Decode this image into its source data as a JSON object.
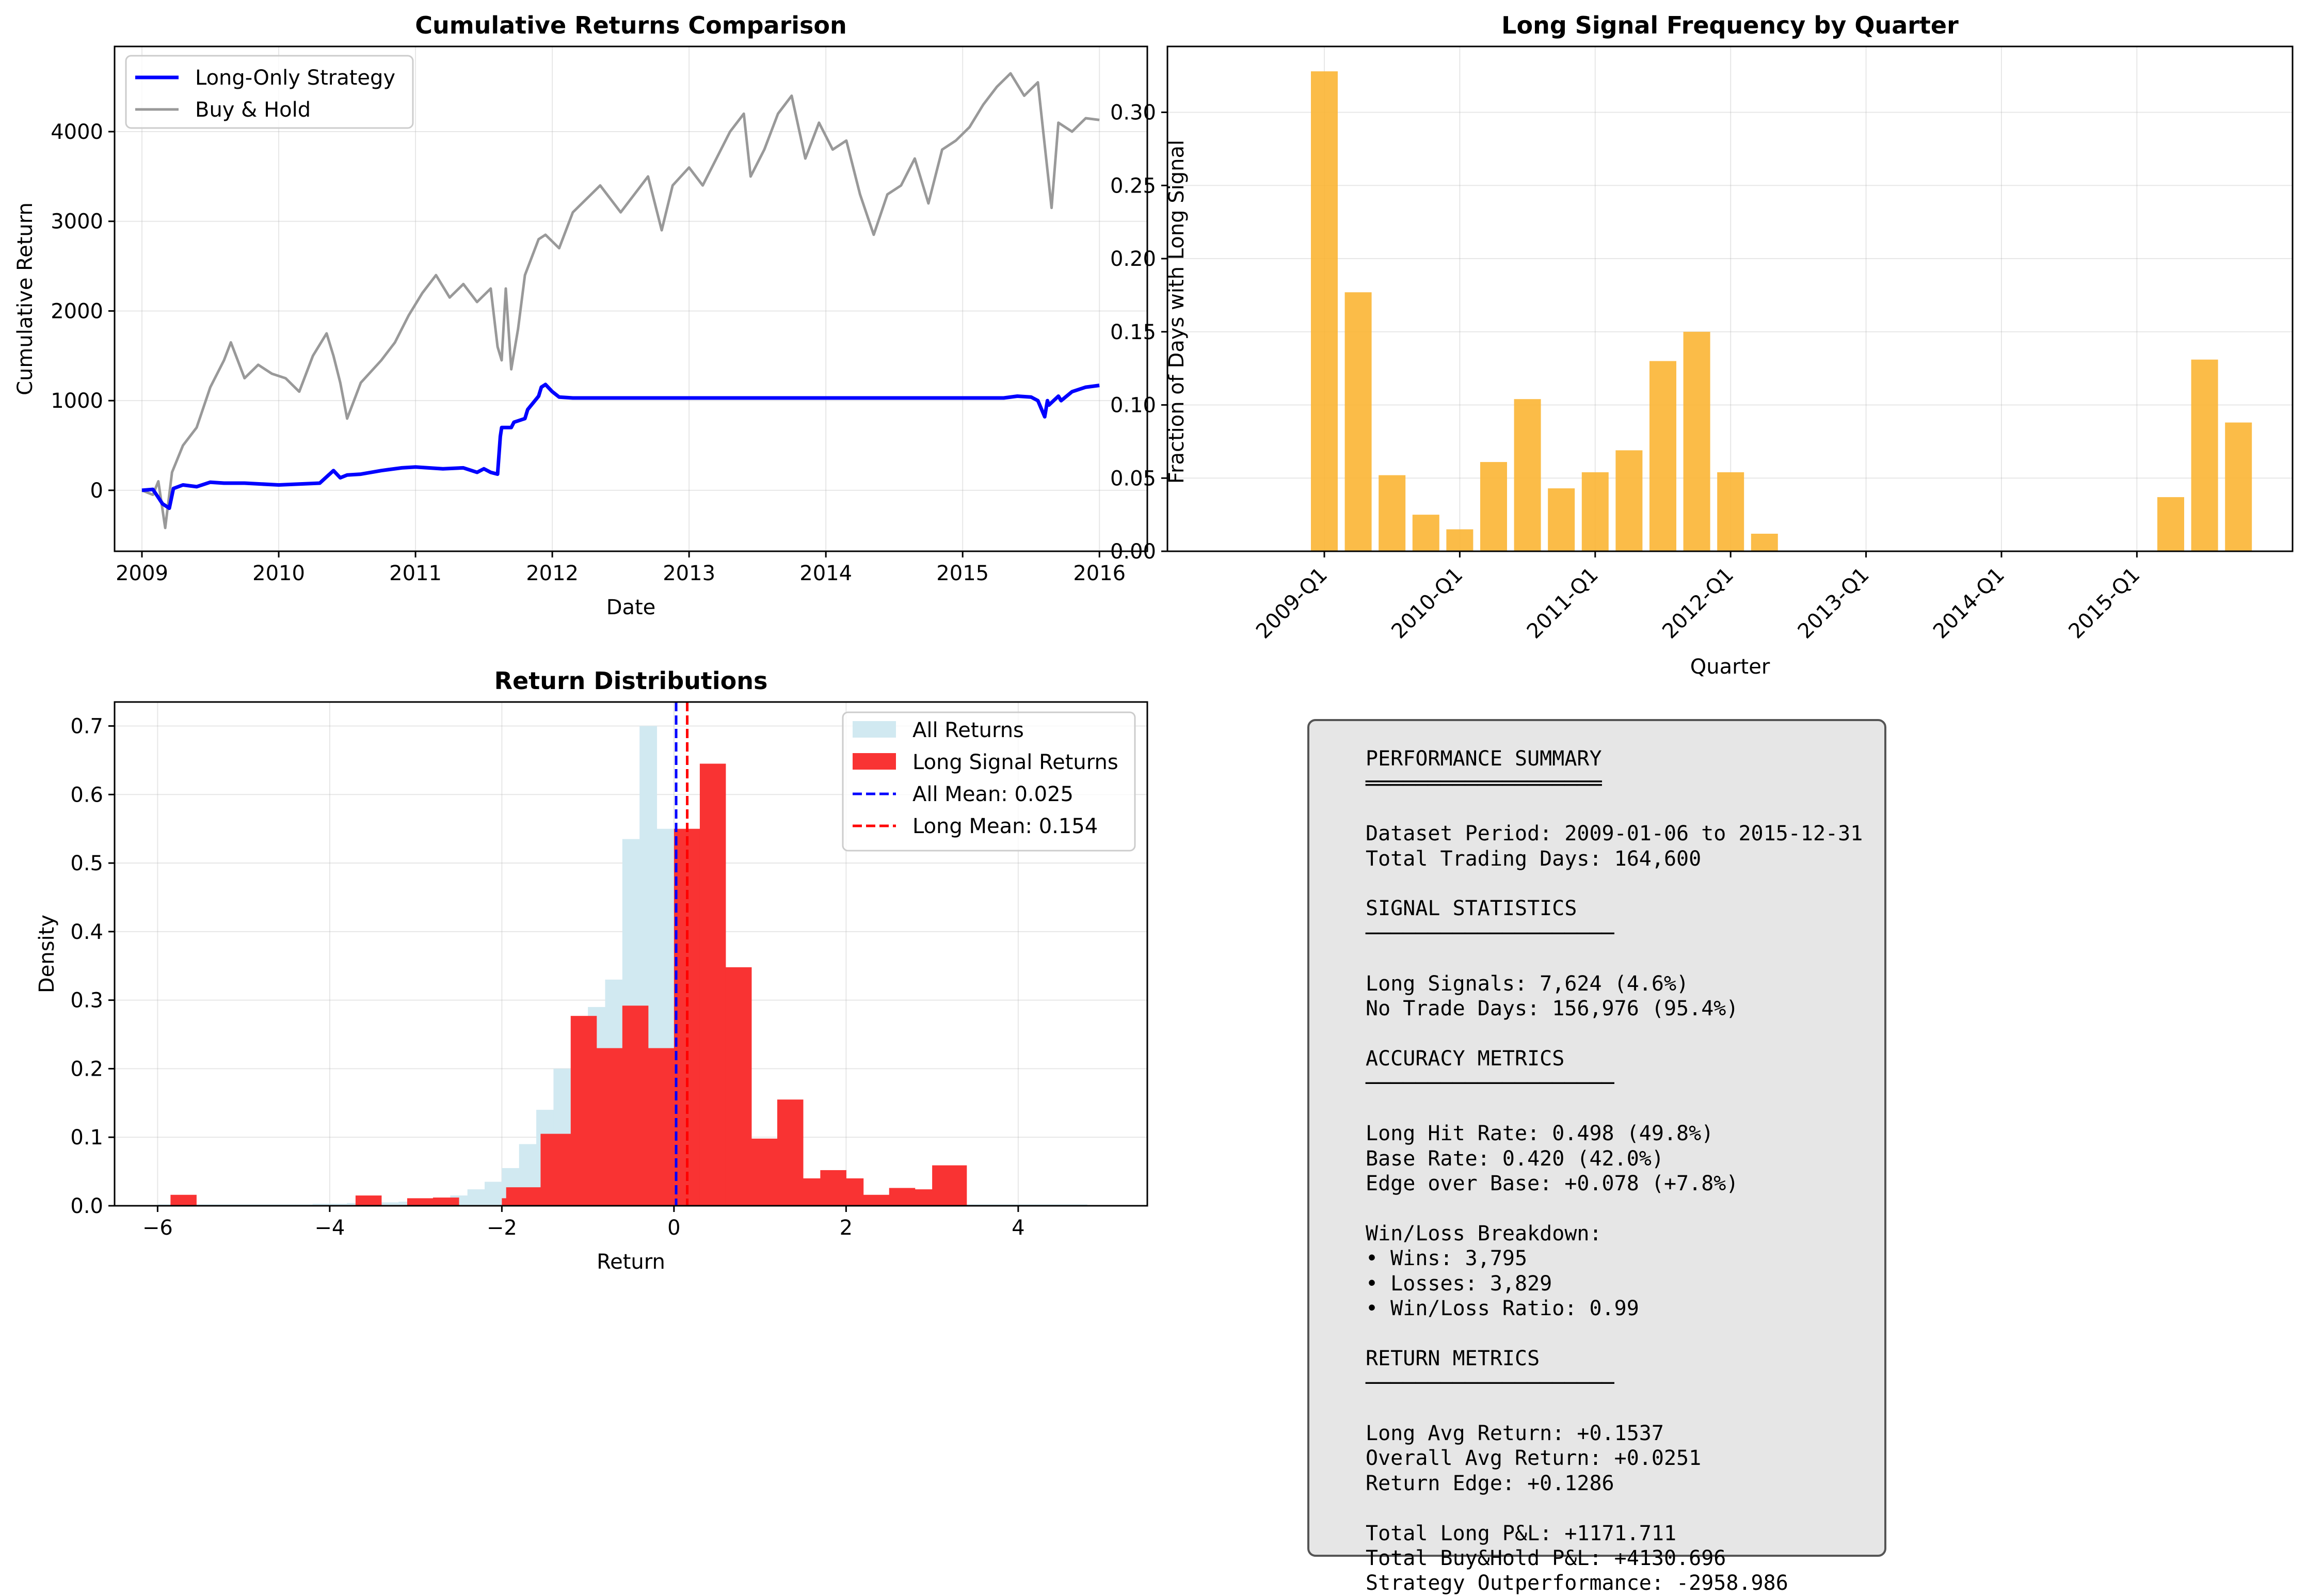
{
  "figure": {
    "charts": [
      {
        "id": "cumulative",
        "type": "line",
        "title": "Cumulative Returns Comparison",
        "xlabel": "Date",
        "ylabel": "Cumulative Return",
        "xlim": [
          2008.8,
          2016.35
        ],
        "ylim": [
          -680,
          4950
        ],
        "xticks": [
          2009,
          2010,
          2011,
          2012,
          2013,
          2014,
          2015,
          2016
        ],
        "yticks": [
          0,
          1000,
          2000,
          3000,
          4000
        ],
        "grid": true,
        "legend_position": "upper left",
        "series": [
          {
            "name": "Long-Only Strategy",
            "color": "#0000ff",
            "x": [
              2009.0,
              2009.08,
              2009.12,
              2009.15,
              2009.2,
              2009.23,
              2009.3,
              2009.4,
              2009.5,
              2009.6,
              2009.75,
              2010.0,
              2010.3,
              2010.4,
              2010.45,
              2010.5,
              2010.6,
              2010.75,
              2010.8,
              2010.9,
              2011.0,
              2011.2,
              2011.35,
              2011.45,
              2011.5,
              2011.55,
              2011.6,
              2011.62,
              2011.63,
              2011.7,
              2011.72,
              2011.8,
              2011.82,
              2011.9,
              2011.92,
              2011.95,
              2012.0,
              2012.05,
              2012.15,
              2012.3,
              2013.0,
              2014.0,
              2015.0,
              2015.3,
              2015.4,
              2015.5,
              2015.55,
              2015.6,
              2015.62,
              2015.63,
              2015.7,
              2015.72,
              2015.8,
              2015.9,
              2016.0
            ],
            "y": [
              0,
              10,
              -80,
              -150,
              -200,
              20,
              60,
              40,
              90,
              80,
              80,
              60,
              80,
              220,
              140,
              170,
              180,
              220,
              230,
              250,
              260,
              240,
              250,
              200,
              240,
              200,
              180,
              600,
              700,
              700,
              760,
              800,
              900,
              1050,
              1150,
              1180,
              1100,
              1040,
              1030,
              1030,
              1030,
              1030,
              1030,
              1030,
              1050,
              1040,
              1000,
              820,
              1000,
              950,
              1050,
              1000,
              1100,
              1150,
              1170
            ]
          },
          {
            "name": "Buy & Hold",
            "color": "#999999",
            "x": [
              2009.0,
              2009.08,
              2009.12,
              2009.17,
              2009.22,
              2009.3,
              2009.4,
              2009.5,
              2009.6,
              2009.65,
              2009.75,
              2009.85,
              2009.95,
              2010.05,
              2010.15,
              2010.25,
              2010.35,
              2010.4,
              2010.45,
              2010.5,
              2010.6,
              2010.75,
              2010.85,
              2010.95,
              2011.05,
              2011.15,
              2011.25,
              2011.35,
              2011.45,
              2011.55,
              2011.6,
              2011.63,
              2011.66,
              2011.7,
              2011.75,
              2011.8,
              2011.85,
              2011.9,
              2011.95,
              2012.05,
              2012.15,
              2012.25,
              2012.35,
              2012.45,
              2012.5,
              2012.6,
              2012.7,
              2012.8,
              2012.88,
              2013.0,
              2013.1,
              2013.2,
              2013.3,
              2013.4,
              2013.45,
              2013.55,
              2013.65,
              2013.75,
              2013.85,
              2013.95,
              2014.05,
              2014.15,
              2014.25,
              2014.35,
              2014.45,
              2014.55,
              2014.65,
              2014.75,
              2014.85,
              2014.95,
              2015.05,
              2015.15,
              2015.25,
              2015.35,
              2015.45,
              2015.55,
              2015.6,
              2015.65,
              2015.7,
              2015.8,
              2015.9,
              2016.0
            ],
            "y": [
              0,
              -50,
              100,
              -420,
              200,
              500,
              700,
              1150,
              1450,
              1650,
              1250,
              1400,
              1300,
              1250,
              1100,
              1500,
              1750,
              1500,
              1200,
              800,
              1200,
              1450,
              1650,
              1950,
              2200,
              2400,
              2150,
              2300,
              2100,
              2250,
              1600,
              1450,
              2250,
              1350,
              1800,
              2400,
              2600,
              2800,
              2850,
              2700,
              3100,
              3250,
              3400,
              3200,
              3100,
              3300,
              3500,
              2900,
              3400,
              3600,
              3400,
              3700,
              4000,
              4200,
              3500,
              3800,
              4200,
              4400,
              3700,
              4100,
              3800,
              3900,
              3300,
              2850,
              3300,
              3400,
              3700,
              3200,
              3800,
              3900,
              4050,
              4300,
              4500,
              4650,
              4400,
              4550,
              3850,
              3150,
              4100,
              4000,
              4150,
              4130
            ]
          }
        ]
      },
      {
        "id": "quarterly",
        "type": "bar",
        "title": "Long Signal Frequency by Quarter",
        "xlabel": "Quarter",
        "ylabel": "Fraction of Days with Long Signal",
        "ylim": [
          0,
          0.345
        ],
        "yticks": [
          "0.00",
          "0.05",
          "0.10",
          "0.15",
          "0.20",
          "0.25",
          "0.30"
        ],
        "xtick_labels": [
          "2009-Q1",
          "2010-Q1",
          "2011-Q1",
          "2012-Q1",
          "2013-Q1",
          "2014-Q1",
          "2015-Q1"
        ],
        "xtick_index": [
          0,
          4,
          8,
          12,
          16,
          20,
          24
        ],
        "bar_color": "#fbb534",
        "n_quarters": 28,
        "values": [
          0.328,
          0.177,
          0.052,
          0.025,
          0.015,
          0.061,
          0.104,
          0.043,
          0.054,
          0.069,
          0.13,
          0.15,
          0.054,
          0.012,
          0.0,
          0.0,
          0.0,
          0.0,
          0.0,
          0.0,
          0.0,
          0.0,
          0.0,
          0.0,
          0.0,
          0.037,
          0.131,
          0.088
        ],
        "grid": true
      },
      {
        "id": "distribution",
        "type": "histogram",
        "title": "Return Distributions",
        "xlabel": "Return",
        "ylabel": "Density",
        "xlim": [
          -6.5,
          5.5
        ],
        "ylim": [
          0,
          0.735
        ],
        "xticks": [
          -6,
          -4,
          -2,
          0,
          2,
          4
        ],
        "xtick_labels": [
          "−6",
          "−4",
          "−2",
          "0",
          "2",
          "4"
        ],
        "yticks": [
          "0.0",
          "0.1",
          "0.2",
          "0.3",
          "0.4",
          "0.5",
          "0.6",
          "0.7"
        ],
        "grid": true,
        "legend_position": "upper right",
        "all_returns": {
          "name": "All Returns",
          "color": "#d1e9f1",
          "bin_start": -6.0,
          "bin_width": 0.2,
          "values": [
            0.002,
            0.002,
            0.002,
            0.002,
            0.002,
            0.002,
            0.002,
            0.002,
            0.002,
            0.003,
            0.003,
            0.004,
            0.004,
            0.005,
            0.006,
            0.008,
            0.012,
            0.015,
            0.024,
            0.035,
            0.055,
            0.09,
            0.14,
            0.2,
            0.27,
            0.29,
            0.33,
            0.535,
            0.7,
            0.55,
            0.29,
            0.19,
            0.115,
            0.075,
            0.04,
            0.025,
            0.015,
            0.01,
            0.007,
            0.005,
            0.004,
            0.003,
            0.002,
            0.002,
            0.002,
            0.002,
            0.002,
            0.002,
            0.002,
            0.002,
            0.002,
            0.002,
            0.002,
            0.002
          ]
        },
        "long_returns": {
          "name": "Long Signal Returns",
          "color": "#f93333",
          "bins": [
            [
              -5.85,
              -5.55,
              0.016
            ],
            [
              -3.7,
              -3.4,
              0.015
            ],
            [
              -3.1,
              -2.8,
              0.011
            ],
            [
              -2.8,
              -2.5,
              0.012
            ],
            [
              -2.0,
              -1.85,
              0.011
            ],
            [
              -1.95,
              -1.55,
              0.027
            ],
            [
              -1.55,
              -1.2,
              0.105
            ],
            [
              -1.2,
              -0.9,
              0.277
            ],
            [
              -0.9,
              -0.6,
              0.23
            ],
            [
              -0.6,
              -0.3,
              0.292
            ],
            [
              -0.3,
              0.0,
              0.23
            ],
            [
              0.0,
              0.3,
              0.55
            ],
            [
              0.3,
              0.6,
              0.645
            ],
            [
              0.6,
              0.9,
              0.348
            ],
            [
              0.9,
              1.2,
              0.098
            ],
            [
              1.2,
              1.5,
              0.155
            ],
            [
              1.5,
              1.7,
              0.04
            ],
            [
              1.7,
              2.0,
              0.052
            ],
            [
              2.0,
              2.2,
              0.04
            ],
            [
              2.2,
              2.5,
              0.016
            ],
            [
              2.5,
              2.8,
              0.026
            ],
            [
              2.8,
              3.0,
              0.024
            ],
            [
              3.0,
              3.4,
              0.059
            ]
          ]
        },
        "vlines": [
          {
            "name": "All Mean: 0.025",
            "value": 0.025,
            "color": "#0000ff"
          },
          {
            "name": "Long Mean: 0.154",
            "value": 0.154,
            "color": "#ff0000"
          }
        ]
      }
    ]
  },
  "summary": {
    "lines": [
      "PERFORMANCE SUMMARY",
      "═══════════════════",
      "",
      "Dataset Period: 2009-01-06 to 2015-12-31",
      "Total Trading Days: 164,600",
      "",
      "SIGNAL STATISTICS",
      "────────────────────",
      "",
      "Long Signals: 7,624 (4.6%)",
      "No Trade Days: 156,976 (95.4%)",
      "",
      "ACCURACY METRICS",
      "────────────────────",
      "",
      "Long Hit Rate: 0.498 (49.8%)",
      "Base Rate: 0.420 (42.0%)",
      "Edge over Base: +0.078 (+7.8%)",
      "",
      "Win/Loss Breakdown:",
      "• Wins: 3,795",
      "• Losses: 3,829",
      "• Win/Loss Ratio: 0.99",
      "",
      "RETURN METRICS",
      "────────────────────",
      "",
      "Long Avg Return: +0.1537",
      "Overall Avg Return: +0.0251",
      "Return Edge: +0.1286",
      "",
      "Total Long P&L: +1171.711",
      "Total Buy&Hold P&L: +4130.696",
      "Strategy Outperformance: -2958.986"
    ]
  }
}
